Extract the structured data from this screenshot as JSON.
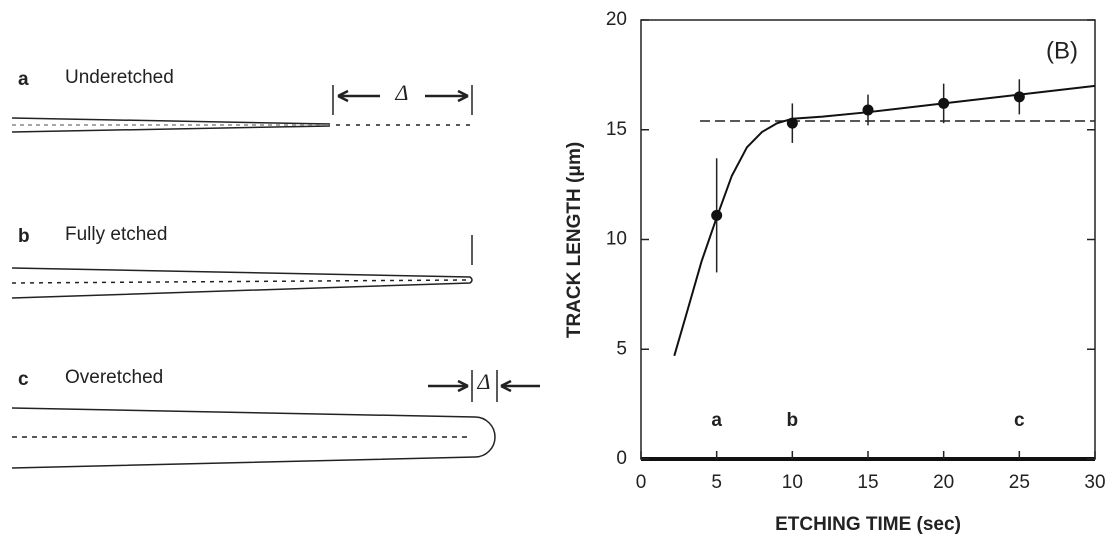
{
  "diagram": {
    "panels": [
      {
        "letter": "a",
        "label": "Underetched",
        "delta": "Δ"
      },
      {
        "letter": "b",
        "label": "Fully etched"
      },
      {
        "letter": "c",
        "label": "Overetched",
        "delta": "Δ"
      }
    ]
  },
  "chart_data": {
    "type": "line",
    "annotation": "(B)",
    "x_label": "ETCHING TIME (sec)",
    "y_label": "TRACK LENGTH (μm)",
    "xlim": [
      0,
      30
    ],
    "xticks": [
      0,
      5,
      10,
      15,
      20,
      25,
      30
    ],
    "ylim": [
      0,
      20
    ],
    "yticks": [
      0,
      5,
      10,
      15,
      20
    ],
    "curve": {
      "x": [
        2.2,
        3,
        4,
        5,
        6,
        7,
        8,
        9,
        10,
        12,
        15,
        20,
        25,
        30
      ],
      "values": [
        4.7,
        6.6,
        9.0,
        11.0,
        12.9,
        14.2,
        14.9,
        15.3,
        15.5,
        15.6,
        15.8,
        16.2,
        16.6,
        17.0
      ]
    },
    "points": {
      "x": [
        5,
        10,
        15,
        20,
        25
      ],
      "values": [
        11.1,
        15.3,
        15.9,
        16.2,
        16.5
      ],
      "errors": [
        2.6,
        0.9,
        0.7,
        0.9,
        0.8
      ]
    },
    "reference_line": {
      "value": 15.4,
      "x": [
        3.9,
        30
      ]
    },
    "markers": [
      {
        "label": "a",
        "x": 5
      },
      {
        "label": "b",
        "x": 10
      },
      {
        "label": "c",
        "x": 25
      }
    ]
  }
}
